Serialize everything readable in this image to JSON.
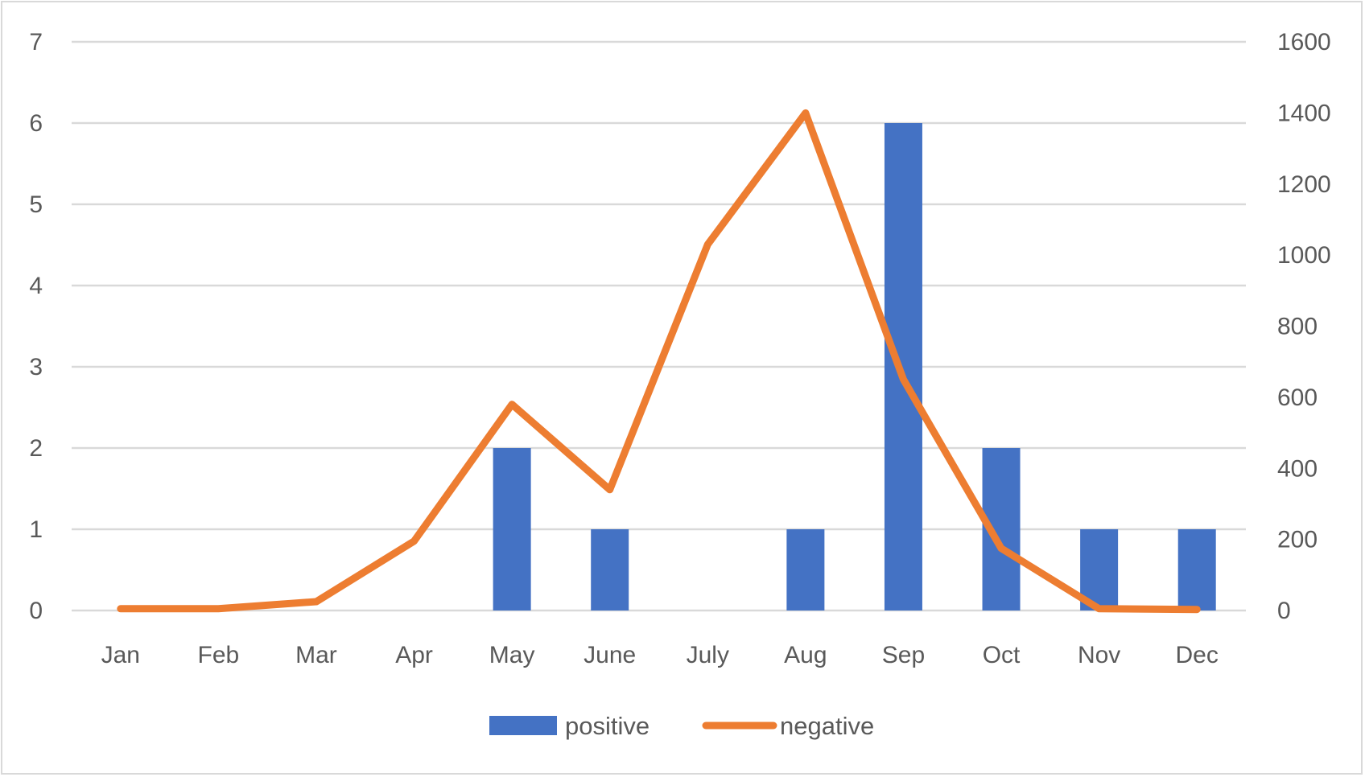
{
  "chart_data": {
    "type": "bar",
    "categories": [
      "Jan",
      "Feb",
      "Mar",
      "Apr",
      "May",
      "June",
      "July",
      "Aug",
      "Sep",
      "Oct",
      "Nov",
      "Dec"
    ],
    "series": [
      {
        "name": "positive",
        "type": "bar",
        "axis": "left",
        "color": "#4472C4",
        "values": [
          0,
          0,
          0,
          0,
          2,
          1,
          0,
          1,
          6,
          2,
          1,
          1
        ]
      },
      {
        "name": "negative",
        "type": "line",
        "axis": "right",
        "color": "#ED7D31",
        "values": [
          5,
          5,
          25,
          195,
          580,
          340,
          1030,
          1400,
          650,
          175,
          5,
          3
        ]
      }
    ],
    "y_left": {
      "ylim": [
        0,
        7
      ],
      "ticks": [
        "0",
        "1",
        "2",
        "3",
        "4",
        "5",
        "6",
        "7"
      ]
    },
    "y_right": {
      "ylim": [
        0,
        1600
      ],
      "ticks": [
        "0",
        "200",
        "400",
        "600",
        "800",
        "1000",
        "1200",
        "1400",
        "1600"
      ]
    },
    "grid": true,
    "legend": {
      "position": "bottom"
    },
    "colors": {
      "gridline": "#d9d9d9",
      "text": "#595959",
      "border": "#d9d9d9"
    }
  }
}
